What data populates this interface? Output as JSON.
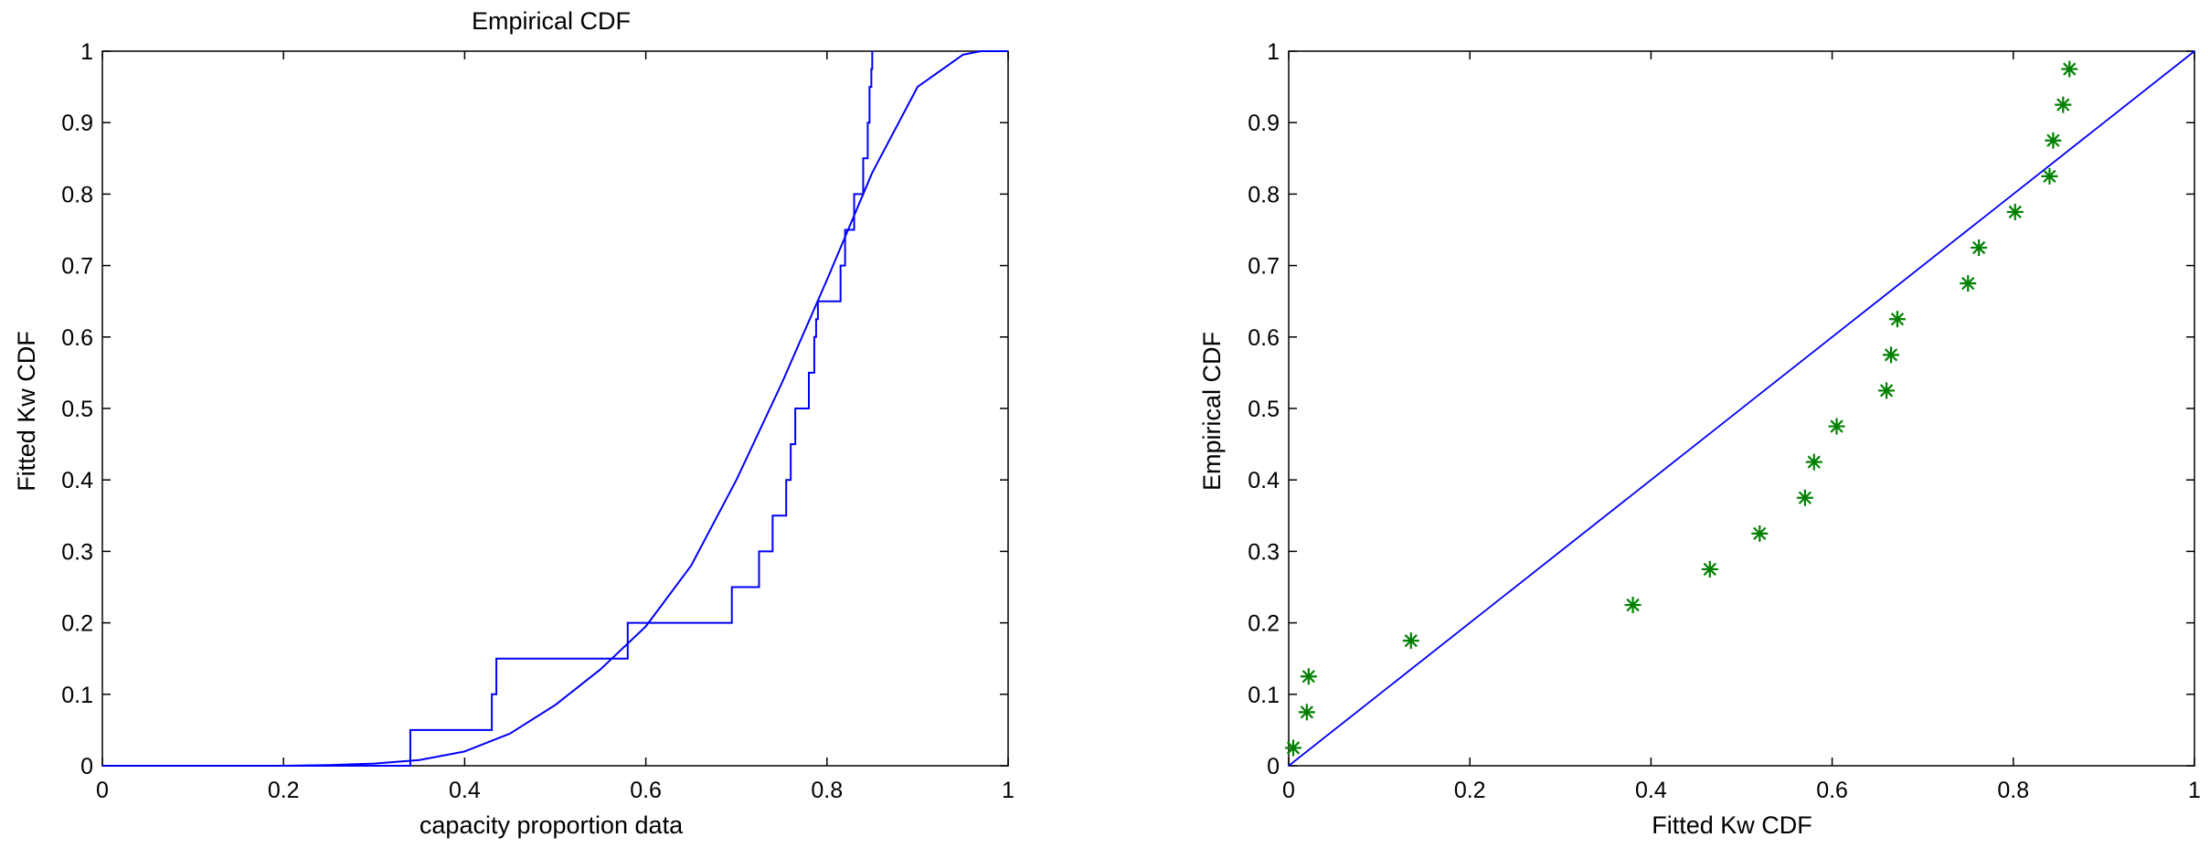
{
  "chart_data": [
    {
      "type": "line",
      "title": "Empirical CDF",
      "xlabel": "capacity proportion data",
      "ylabel": "Fitted Kw CDF",
      "xlim": [
        0,
        1
      ],
      "ylim": [
        0,
        1
      ],
      "xticks": [
        "0",
        "0.2",
        "0.4",
        "0.6",
        "0.8",
        "1"
      ],
      "yticks": [
        "0",
        "0.1",
        "0.2",
        "0.3",
        "0.4",
        "0.5",
        "0.6",
        "0.7",
        "0.8",
        "0.9",
        "1"
      ],
      "grid": false,
      "line_color": "#0000ff",
      "series": [
        {
          "kind": "step",
          "x": [
            0,
            0.34,
            0.43,
            0.435,
            0.58,
            0.695,
            0.725,
            0.74,
            0.755,
            0.76,
            0.765,
            0.78,
            0.786,
            0.788,
            0.79,
            0.815,
            0.82,
            0.83,
            0.84,
            0.845,
            0.847,
            0.849,
            0.85
          ],
          "y": [
            0,
            0.05,
            0.1,
            0.15,
            0.2,
            0.25,
            0.3,
            0.35,
            0.4,
            0.45,
            0.5,
            0.55,
            0.6,
            0.625,
            0.65,
            0.7,
            0.75,
            0.8,
            0.85,
            0.9,
            0.95,
            0.975,
            1.0
          ]
        },
        {
          "kind": "curve",
          "x": [
            0,
            0.2,
            0.25,
            0.3,
            0.35,
            0.4,
            0.45,
            0.5,
            0.55,
            0.6,
            0.65,
            0.7,
            0.75,
            0.8,
            0.85,
            0.9,
            0.95,
            0.97,
            1.0
          ],
          "y": [
            0,
            0,
            0.001,
            0.003,
            0.008,
            0.02,
            0.045,
            0.085,
            0.135,
            0.195,
            0.28,
            0.4,
            0.535,
            0.68,
            0.83,
            0.95,
            0.995,
            1.0,
            1.0
          ]
        }
      ]
    },
    {
      "type": "scatter",
      "title": "",
      "xlabel": "Fitted Kw CDF",
      "ylabel": "Empirical CDF",
      "xlim": [
        0,
        1
      ],
      "ylim": [
        0,
        1
      ],
      "xticks": [
        "0",
        "0.2",
        "0.4",
        "0.6",
        "0.8",
        "1"
      ],
      "yticks": [
        "0",
        "0.1",
        "0.2",
        "0.3",
        "0.4",
        "0.5",
        "0.6",
        "0.7",
        "0.8",
        "0.9",
        "1"
      ],
      "grid": false,
      "line_color": "#0000ff",
      "marker_color": "#008000",
      "marker": "*",
      "reference_line": {
        "x": [
          0,
          1
        ],
        "y": [
          0,
          1
        ]
      },
      "series": [
        {
          "x": [
            0.005,
            0.02,
            0.022,
            0.135,
            0.38,
            0.465,
            0.52,
            0.57,
            0.58,
            0.605,
            0.66,
            0.665,
            0.672,
            0.75,
            0.762,
            0.802,
            0.84,
            0.844,
            0.855,
            0.862
          ],
          "y": [
            0.025,
            0.075,
            0.125,
            0.175,
            0.225,
            0.275,
            0.325,
            0.375,
            0.425,
            0.475,
            0.525,
            0.575,
            0.625,
            0.675,
            0.725,
            0.775,
            0.825,
            0.875,
            0.925,
            0.975
          ]
        }
      ]
    }
  ]
}
